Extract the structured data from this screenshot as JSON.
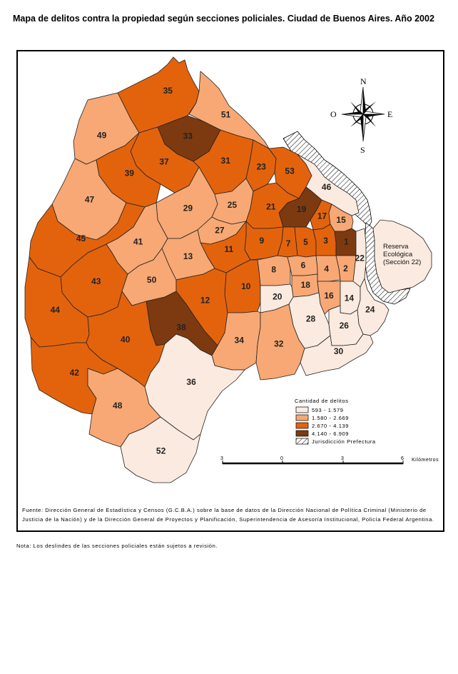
{
  "title": "Mapa de delitos contra la propiedad según secciones policiales. Ciudad de Buenos Aires. Año 2002",
  "colors": {
    "class1": "#fbeadf",
    "class2": "#f8a874",
    "class3": "#e3630d",
    "class4": "#7d3a10",
    "border": "#222222",
    "water": "#ffffff"
  },
  "compass": {
    "north": "N",
    "south": "S",
    "east": "E",
    "west": "O"
  },
  "reserve_label": [
    "Reserva",
    "Ecológica",
    "(Sección 22)"
  ],
  "sections": [
    {
      "id": "35",
      "cls": 3
    },
    {
      "id": "51",
      "cls": 2
    },
    {
      "id": "49",
      "cls": 2
    },
    {
      "id": "33",
      "cls": 4
    },
    {
      "id": "37",
      "cls": 3
    },
    {
      "id": "31",
      "cls": 3
    },
    {
      "id": "39",
      "cls": 3
    },
    {
      "id": "23",
      "cls": 3
    },
    {
      "id": "53",
      "cls": 3
    },
    {
      "id": "47",
      "cls": 2
    },
    {
      "id": "46",
      "cls": 1
    },
    {
      "id": "19",
      "cls": 4
    },
    {
      "id": "17",
      "cls": 3
    },
    {
      "id": "15",
      "cls": 2
    },
    {
      "id": "29",
      "cls": 2
    },
    {
      "id": "25",
      "cls": 2
    },
    {
      "id": "21",
      "cls": 3
    },
    {
      "id": "27",
      "cls": 2
    },
    {
      "id": "45",
      "cls": 3
    },
    {
      "id": "41",
      "cls": 2
    },
    {
      "id": "9",
      "cls": 3
    },
    {
      "id": "7",
      "cls": 3
    },
    {
      "id": "5",
      "cls": 3
    },
    {
      "id": "3",
      "cls": 3
    },
    {
      "id": "1",
      "cls": 4
    },
    {
      "id": "11",
      "cls": 3
    },
    {
      "id": "13",
      "cls": 2
    },
    {
      "id": "22",
      "cls": 1
    },
    {
      "id": "8",
      "cls": 2
    },
    {
      "id": "6",
      "cls": 2
    },
    {
      "id": "4",
      "cls": 2
    },
    {
      "id": "2",
      "cls": 2
    },
    {
      "id": "43",
      "cls": 3
    },
    {
      "id": "50",
      "cls": 2
    },
    {
      "id": "10",
      "cls": 3
    },
    {
      "id": "18",
      "cls": 2
    },
    {
      "id": "20",
      "cls": 1
    },
    {
      "id": "16",
      "cls": 2
    },
    {
      "id": "14",
      "cls": 1
    },
    {
      "id": "44",
      "cls": 3
    },
    {
      "id": "12",
      "cls": 3
    },
    {
      "id": "38",
      "cls": 4
    },
    {
      "id": "24",
      "cls": 1
    },
    {
      "id": "28",
      "cls": 1
    },
    {
      "id": "26",
      "cls": 1
    },
    {
      "id": "40",
      "cls": 3
    },
    {
      "id": "34",
      "cls": 2
    },
    {
      "id": "32",
      "cls": 2
    },
    {
      "id": "30",
      "cls": 1
    },
    {
      "id": "42",
      "cls": 3
    },
    {
      "id": "36",
      "cls": 1
    },
    {
      "id": "48",
      "cls": 2
    },
    {
      "id": "52",
      "cls": 1
    }
  ],
  "legend": {
    "title": "Cantidad de delitos",
    "items": [
      {
        "label": "593 - 1.579",
        "color": "#fbeadf",
        "hatch": false
      },
      {
        "label": "1.580 - 2.669",
        "color": "#f8a874",
        "hatch": false
      },
      {
        "label": "2.670 - 4.139",
        "color": "#e3630d",
        "hatch": false
      },
      {
        "label": "4.140 - 6.909",
        "color": "#7d3a10",
        "hatch": false
      },
      {
        "label": "Jurisdicción Prefectura",
        "color": "#ffffff",
        "hatch": true
      }
    ]
  },
  "scale": {
    "ticks": [
      "3",
      "0",
      "3",
      "6"
    ],
    "unit": "Kilómetros"
  },
  "source": "Fuente: Dirección General de Estadística y Censos (G.C.B.A.) sobre la base de datos de la Dirección Nacional de Política Criminal (Ministerio de Justicia de la Nación) y de la Dirección General de Proyectos y Planificación, Superintendencia de Asesoría Institucional, Policía Federal Argentina.",
  "nota": "Nota: Los deslindes de las secciones policiales están sujetos a revisión."
}
